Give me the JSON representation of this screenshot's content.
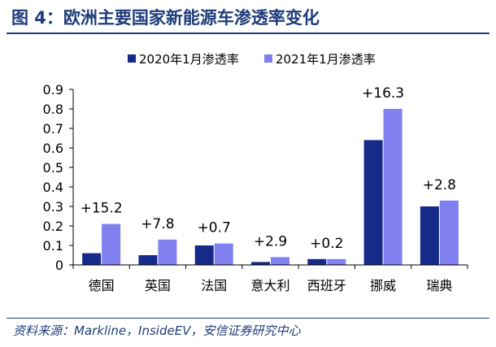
{
  "header": {
    "title": "图 4：欧洲主要国家新能源车渗透率变化"
  },
  "footer": {
    "source": "资料来源：Markline，InsideEV，安信证券研究中心"
  },
  "chart_data": {
    "type": "bar",
    "title": "图 4：欧洲主要国家新能源车渗透率变化",
    "categories": [
      "德国",
      "英国",
      "法国",
      "意大利",
      "西班牙",
      "挪威",
      "瑞典"
    ],
    "series": [
      {
        "name": "2020年1月渗透率",
        "color": "#162a8a",
        "values": [
          0.06,
          0.05,
          0.1,
          0.015,
          0.03,
          0.64,
          0.3
        ]
      },
      {
        "name": "2021年1月渗透率",
        "color": "#8080f0",
        "values": [
          0.21,
          0.13,
          0.11,
          0.04,
          0.03,
          0.8,
          0.33
        ]
      }
    ],
    "annotations": [
      "+15.2",
      "+7.8",
      "+0.7",
      "+2.9",
      "+0.2",
      "+16.3",
      "+2.8"
    ],
    "yticks": [
      "0",
      "0.1",
      "0.2",
      "0.3",
      "0.4",
      "0.5",
      "0.6",
      "0.7",
      "0.8",
      "0.9"
    ],
    "ylim": [
      0,
      0.9
    ],
    "xlabel": "",
    "ylabel": "",
    "legend_position": "top-center"
  }
}
